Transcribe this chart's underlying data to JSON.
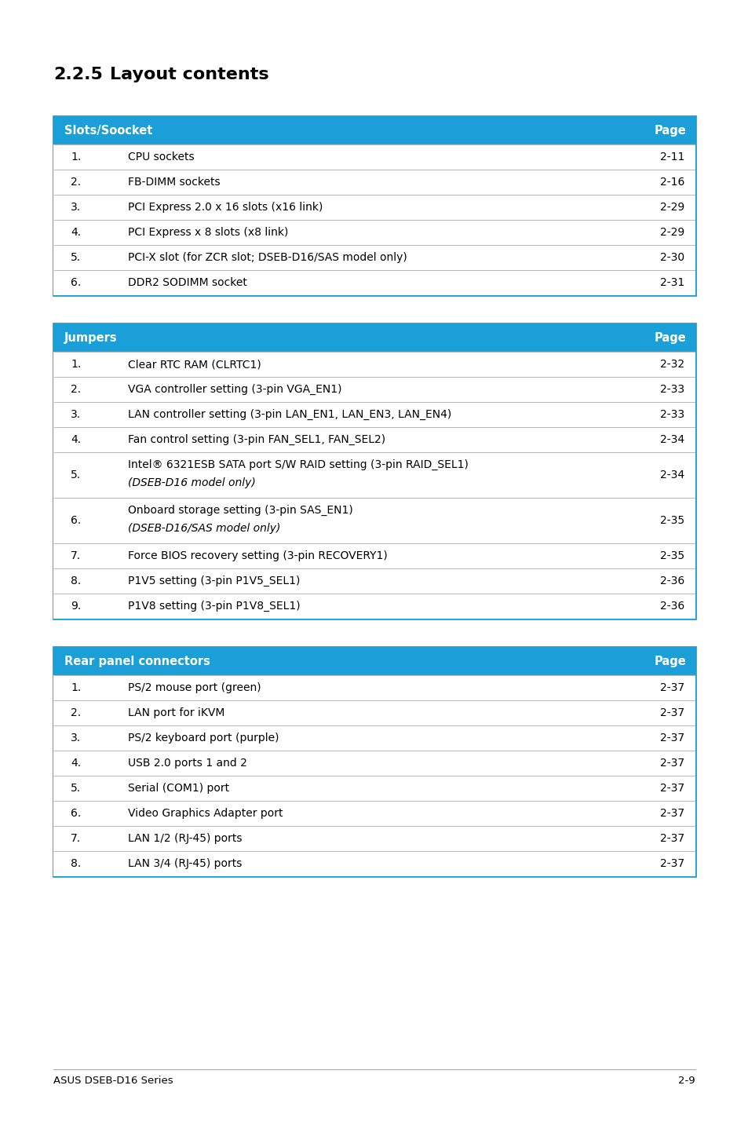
{
  "title_num": "2.2.5",
  "title_text": "Layout contents",
  "header_color": "#1b9fd8",
  "header_text_color": "#ffffff",
  "border_color": "#1b9fd8",
  "divider_color": "#bbbbbb",
  "text_color": "#000000",
  "footer_left": "ASUS DSEB-D16 Series",
  "footer_right": "2-9",
  "table1": {
    "header": [
      "Slots/Soocket",
      "Page"
    ],
    "rows": [
      [
        "1.",
        "CPU sockets",
        "2-11",
        false
      ],
      [
        "2.",
        "FB-DIMM sockets",
        "2-16",
        false
      ],
      [
        "3.",
        "PCI Express 2.0 x 16 slots (x16 link)",
        "2-29",
        false
      ],
      [
        "4.",
        "PCI Express x 8 slots (x8 link)",
        "2-29",
        false
      ],
      [
        "5.",
        "PCI-X slot (for ZCR slot; DSEB-D16/SAS model only)",
        "2-30",
        false
      ],
      [
        "6.",
        "DDR2 SODIMM socket",
        "2-31",
        false
      ]
    ]
  },
  "table2": {
    "header": [
      "Jumpers",
      "Page"
    ],
    "rows": [
      [
        "1.",
        "Clear RTC RAM (CLRTC1)",
        "2-32",
        false
      ],
      [
        "2.",
        "VGA controller setting (3-pin VGA_EN1)",
        "2-33",
        false
      ],
      [
        "3.",
        "LAN controller setting (3-pin LAN_EN1, LAN_EN3, LAN_EN4)",
        "2-33",
        false
      ],
      [
        "4.",
        "Fan control setting (3-pin FAN_SEL1, FAN_SEL2)",
        "2-34",
        false
      ],
      [
        "5.",
        "Intel® 6321ESB SATA port S/W RAID setting (3-pin RAID_SEL1)\n(DSEB-D16 model only)",
        "2-34",
        true
      ],
      [
        "6.",
        "Onboard storage setting (3-pin SAS_EN1)\n(DSEB-D16/SAS model only)",
        "2-35",
        true
      ],
      [
        "7.",
        "Force BIOS recovery setting (3-pin RECOVERY1)",
        "2-35",
        false
      ],
      [
        "8.",
        "P1V5 setting (3-pin P1V5_SEL1)",
        "2-36",
        false
      ],
      [
        "9.",
        "P1V8 setting (3-pin P1V8_SEL1)",
        "2-36",
        false
      ]
    ]
  },
  "table3": {
    "header": [
      "Rear panel connectors",
      "Page"
    ],
    "rows": [
      [
        "1.",
        "PS/2 mouse port (green)",
        "2-37",
        false
      ],
      [
        "2.",
        "LAN port for iKVM",
        "2-37",
        false
      ],
      [
        "3.",
        "PS/2 keyboard port (purple)",
        "2-37",
        false
      ],
      [
        "4.",
        "USB 2.0 ports 1 and 2",
        "2-37",
        false
      ],
      [
        "5.",
        "Serial (COM1) port",
        "2-37",
        false
      ],
      [
        "6.",
        "Video Graphics Adapter port",
        "2-37",
        false
      ],
      [
        "7.",
        "LAN 1/2 (RJ-45) ports",
        "2-37",
        false
      ],
      [
        "8.",
        "LAN 3/4 (RJ-45) ports",
        "2-37",
        false
      ]
    ]
  }
}
